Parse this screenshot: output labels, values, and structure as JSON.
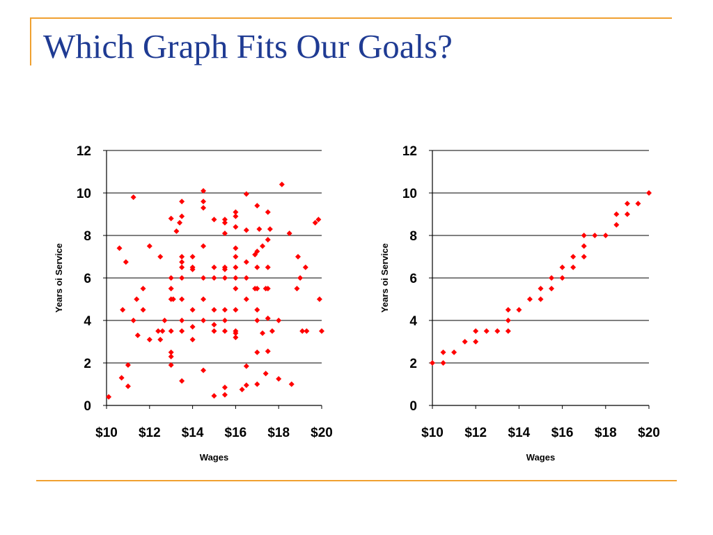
{
  "slide": {
    "title": "Which Graph Fits Our Goals?",
    "accent_color": "#f0a030",
    "title_color": "#1f3b93"
  },
  "chart_data": [
    {
      "type": "scatter",
      "title": "",
      "xlabel": "Wages",
      "ylabel": "Years oi Service",
      "xlim": [
        10,
        20
      ],
      "ylim": [
        0,
        12
      ],
      "x_ticks": [
        10,
        12,
        14,
        16,
        18,
        20
      ],
      "x_tick_labels": [
        "$10",
        "$12",
        "$14",
        "$16",
        "$18",
        "$20"
      ],
      "y_ticks": [
        0,
        2,
        4,
        6,
        8,
        10,
        12
      ],
      "y_tick_labels": [
        "0",
        "2",
        "4",
        "6",
        "8",
        "10",
        "12"
      ],
      "grid": "horizontal",
      "marker_color": "#ff0000",
      "points": [
        [
          10.1,
          0.4
        ],
        [
          10.6,
          7.4
        ],
        [
          10.7,
          1.3
        ],
        [
          10.75,
          4.5
        ],
        [
          10.9,
          6.75
        ],
        [
          11.0,
          1.9
        ],
        [
          11.0,
          0.9
        ],
        [
          11.25,
          9.8
        ],
        [
          11.25,
          4.0
        ],
        [
          11.4,
          5.0
        ],
        [
          11.45,
          3.3
        ],
        [
          11.7,
          5.5
        ],
        [
          11.7,
          4.5
        ],
        [
          12.0,
          7.5
        ],
        [
          12.0,
          3.1
        ],
        [
          12.4,
          3.5
        ],
        [
          12.5,
          3.1
        ],
        [
          12.5,
          7.0
        ],
        [
          12.6,
          3.5
        ],
        [
          12.7,
          4.0
        ],
        [
          13.0,
          8.8
        ],
        [
          13.0,
          6.0
        ],
        [
          13.0,
          5.5
        ],
        [
          13.0,
          5.0
        ],
        [
          13.0,
          3.5
        ],
        [
          13.0,
          2.5
        ],
        [
          13.0,
          2.3
        ],
        [
          13.0,
          1.9
        ],
        [
          13.1,
          5.0
        ],
        [
          13.25,
          8.2
        ],
        [
          13.4,
          8.6
        ],
        [
          13.5,
          9.6
        ],
        [
          13.5,
          8.9
        ],
        [
          13.5,
          7.0
        ],
        [
          13.5,
          6.75
        ],
        [
          13.5,
          6.5
        ],
        [
          13.5,
          6.0
        ],
        [
          13.5,
          5.0
        ],
        [
          13.5,
          4.0
        ],
        [
          13.5,
          3.5
        ],
        [
          13.5,
          1.15
        ],
        [
          14.0,
          7.0
        ],
        [
          14.0,
          6.5
        ],
        [
          14.0,
          6.4
        ],
        [
          14.0,
          4.5
        ],
        [
          14.0,
          3.7
        ],
        [
          14.0,
          3.1
        ],
        [
          14.5,
          10.1
        ],
        [
          14.5,
          9.6
        ],
        [
          14.5,
          9.3
        ],
        [
          14.5,
          7.5
        ],
        [
          14.5,
          6.0
        ],
        [
          14.5,
          5.0
        ],
        [
          14.5,
          4.0
        ],
        [
          14.5,
          1.65
        ],
        [
          15.0,
          8.75
        ],
        [
          15.0,
          6.5
        ],
        [
          15.0,
          6.0
        ],
        [
          15.0,
          4.5
        ],
        [
          15.0,
          3.8
        ],
        [
          15.0,
          3.5
        ],
        [
          15.0,
          0.45
        ],
        [
          15.5,
          8.75
        ],
        [
          15.5,
          8.6
        ],
        [
          15.5,
          8.1
        ],
        [
          15.5,
          6.5
        ],
        [
          15.5,
          6.4
        ],
        [
          15.5,
          6.0
        ],
        [
          15.5,
          4.5
        ],
        [
          15.5,
          4.0
        ],
        [
          15.5,
          3.5
        ],
        [
          15.5,
          0.85
        ],
        [
          15.5,
          0.5
        ],
        [
          16.0,
          9.1
        ],
        [
          16.0,
          8.9
        ],
        [
          16.0,
          8.4
        ],
        [
          16.0,
          7.4
        ],
        [
          16.0,
          7.0
        ],
        [
          16.0,
          6.5
        ],
        [
          16.0,
          6.0
        ],
        [
          16.0,
          5.5
        ],
        [
          16.0,
          4.5
        ],
        [
          16.0,
          3.5
        ],
        [
          16.0,
          3.4
        ],
        [
          16.0,
          3.2
        ],
        [
          16.3,
          0.75
        ],
        [
          16.5,
          9.95
        ],
        [
          16.5,
          8.25
        ],
        [
          16.5,
          6.75
        ],
        [
          16.5,
          6.0
        ],
        [
          16.5,
          5.0
        ],
        [
          16.5,
          1.85
        ],
        [
          16.5,
          0.95
        ],
        [
          16.9,
          7.1
        ],
        [
          16.9,
          5.5
        ],
        [
          17.0,
          9.4
        ],
        [
          17.0,
          7.25
        ],
        [
          17.0,
          6.5
        ],
        [
          17.0,
          5.5
        ],
        [
          17.0,
          4.5
        ],
        [
          17.0,
          4.0
        ],
        [
          17.0,
          2.5
        ],
        [
          17.0,
          1.0
        ],
        [
          17.1,
          8.3
        ],
        [
          17.25,
          7.5
        ],
        [
          17.25,
          3.4
        ],
        [
          17.4,
          5.5
        ],
        [
          17.4,
          1.5
        ],
        [
          17.5,
          9.1
        ],
        [
          17.5,
          7.8
        ],
        [
          17.5,
          6.5
        ],
        [
          17.5,
          5.5
        ],
        [
          17.5,
          4.1
        ],
        [
          17.5,
          2.55
        ],
        [
          17.6,
          8.3
        ],
        [
          17.7,
          3.5
        ],
        [
          18.0,
          1.25
        ],
        [
          18.0,
          4.0
        ],
        [
          18.15,
          10.4
        ],
        [
          18.5,
          8.1
        ],
        [
          18.6,
          1.0
        ],
        [
          18.85,
          5.5
        ],
        [
          18.9,
          7.0
        ],
        [
          19.0,
          6.0
        ],
        [
          19.1,
          3.5
        ],
        [
          19.25,
          6.5
        ],
        [
          19.3,
          3.5
        ],
        [
          19.7,
          8.6
        ],
        [
          19.85,
          8.75
        ],
        [
          19.9,
          5.0
        ],
        [
          20.0,
          3.5
        ]
      ]
    },
    {
      "type": "scatter",
      "title": "",
      "xlabel": "Wages",
      "ylabel": "Years oi Service",
      "xlim": [
        10,
        20
      ],
      "ylim": [
        0,
        12
      ],
      "x_ticks": [
        10,
        12,
        14,
        16,
        18,
        20
      ],
      "x_tick_labels": [
        "$10",
        "$12",
        "$14",
        "$16",
        "$18",
        "$20"
      ],
      "y_ticks": [
        0,
        2,
        4,
        6,
        8,
        10,
        12
      ],
      "y_tick_labels": [
        "0",
        "2",
        "4",
        "6",
        "8",
        "10",
        "12"
      ],
      "grid": "horizontal",
      "marker_color": "#ff0000",
      "points": [
        [
          10,
          2
        ],
        [
          10.5,
          2.5
        ],
        [
          10.5,
          2
        ],
        [
          11,
          2.5
        ],
        [
          11.5,
          3
        ],
        [
          12,
          3.5
        ],
        [
          12,
          3
        ],
        [
          12.5,
          3.5
        ],
        [
          13,
          3.5
        ],
        [
          13.5,
          4.5
        ],
        [
          13.5,
          4
        ],
        [
          13.5,
          3.5
        ],
        [
          14,
          4.5
        ],
        [
          14.5,
          5
        ],
        [
          15,
          5.5
        ],
        [
          15,
          5
        ],
        [
          15.5,
          6
        ],
        [
          15.5,
          5.5
        ],
        [
          16,
          6.5
        ],
        [
          16,
          6
        ],
        [
          16.5,
          7
        ],
        [
          16.5,
          6.5
        ],
        [
          17,
          8
        ],
        [
          17,
          7.5
        ],
        [
          17,
          7
        ],
        [
          17.5,
          8
        ],
        [
          18,
          8
        ],
        [
          18.5,
          9
        ],
        [
          18.5,
          8.5
        ],
        [
          19,
          9.5
        ],
        [
          19,
          9
        ],
        [
          19.5,
          9.5
        ],
        [
          20,
          10
        ]
      ]
    }
  ]
}
